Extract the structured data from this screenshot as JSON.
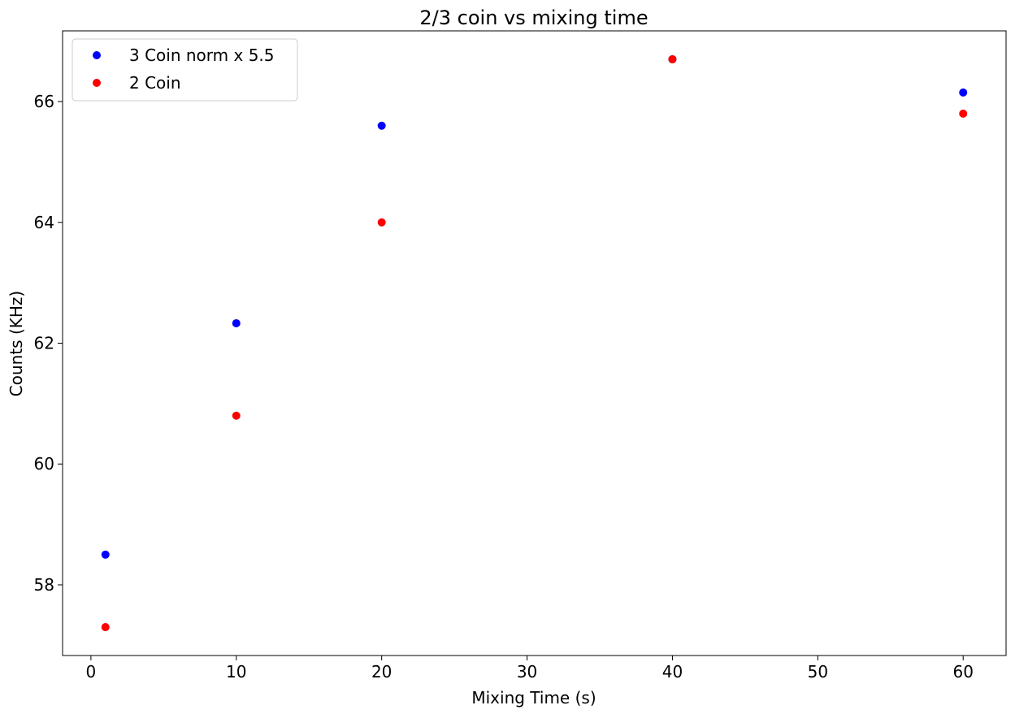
{
  "chart_data": {
    "type": "scatter",
    "title": "2/3 coin vs mixing time",
    "xlabel": "Mixing Time (s)",
    "ylabel": "Counts (KHz)",
    "xlim": [
      -1.95,
      62.95
    ],
    "ylim": [
      56.83,
      67.17
    ],
    "xticks": [
      0,
      10,
      20,
      30,
      40,
      50,
      60
    ],
    "yticks": [
      58,
      60,
      62,
      64,
      66
    ],
    "grid": false,
    "legend_position": "top-left",
    "series": [
      {
        "name": "3 Coin norm x 5.5",
        "color": "#0000ff",
        "x": [
          1,
          10,
          20,
          40,
          60
        ],
        "y": [
          58.5,
          62.33,
          65.6,
          66.7,
          66.15
        ]
      },
      {
        "name": "2 Coin",
        "color": "#ff0000",
        "x": [
          1,
          10,
          20,
          40,
          60
        ],
        "y": [
          57.3,
          60.8,
          64.0,
          66.7,
          65.8
        ]
      }
    ]
  }
}
